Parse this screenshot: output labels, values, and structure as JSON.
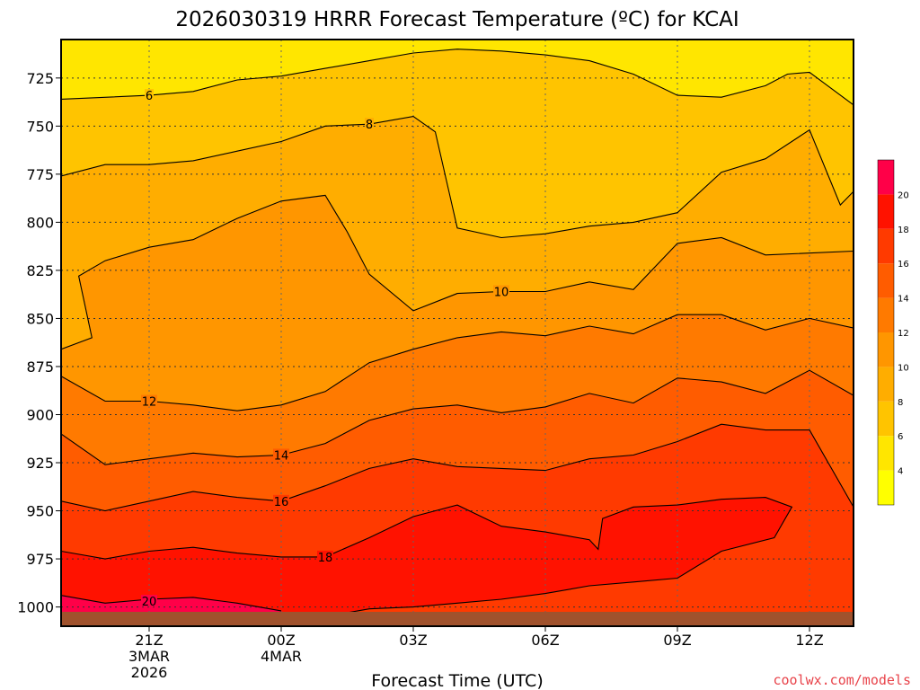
{
  "chart_data": {
    "type": "heatmap",
    "title": "2026030319 HRRR Forecast Temperature (ºC) for KCAI",
    "xlabel": "Forecast Time (UTC)",
    "ylabel": "",
    "credit": "coolwx.com/models",
    "x_ticks": [
      {
        "hour": 21,
        "lines": [
          "21Z",
          "3MAR",
          "2026"
        ]
      },
      {
        "hour": 24,
        "lines": [
          "00Z",
          "4MAR"
        ]
      },
      {
        "hour": 27,
        "lines": [
          "03Z"
        ]
      },
      {
        "hour": 30,
        "lines": [
          "06Z"
        ]
      },
      {
        "hour": 33,
        "lines": [
          "09Z"
        ]
      },
      {
        "hour": 36,
        "lines": [
          "12Z"
        ]
      }
    ],
    "xlim": [
      19,
      37
    ],
    "y_ticks": [
      725,
      750,
      775,
      800,
      825,
      850,
      875,
      900,
      925,
      950,
      975,
      1000
    ],
    "ylim_hpa": [
      705,
      1010
    ],
    "colorbar_ticks": [
      4,
      6,
      8,
      10,
      12,
      14,
      16,
      18,
      20
    ],
    "levels": [
      {
        "min": 2,
        "max": 4,
        "color": "#ffff00"
      },
      {
        "min": 4,
        "max": 6,
        "color": "#ffe600"
      },
      {
        "min": 6,
        "max": 8,
        "color": "#ffc400"
      },
      {
        "min": 8,
        "max": 10,
        "color": "#ffad00"
      },
      {
        "min": 10,
        "max": 12,
        "color": "#ff9600"
      },
      {
        "min": 12,
        "max": 14,
        "color": "#ff7a00"
      },
      {
        "min": 14,
        "max": 16,
        "color": "#ff5c00"
      },
      {
        "min": 16,
        "max": 18,
        "color": "#ff3a00"
      },
      {
        "min": 18,
        "max": 20,
        "color": "#ff1200"
      },
      {
        "min": 20,
        "max": 22,
        "color": "#ff0048"
      }
    ],
    "contours": [
      {
        "value": 6,
        "label_at": [
          21,
          734
        ],
        "points": [
          [
            19,
            736
          ],
          [
            21,
            734
          ],
          [
            22,
            732
          ],
          [
            23,
            726
          ],
          [
            24,
            724
          ],
          [
            25,
            720
          ],
          [
            26,
            716
          ],
          [
            27,
            712
          ],
          [
            28,
            710
          ],
          [
            29,
            711
          ],
          [
            30,
            713
          ],
          [
            31,
            716
          ],
          [
            32,
            723
          ],
          [
            33,
            734
          ],
          [
            34,
            735
          ],
          [
            35,
            729
          ],
          [
            35.5,
            723
          ],
          [
            36,
            722
          ],
          [
            37,
            739
          ]
        ]
      },
      {
        "value": 8,
        "label_at": [
          26,
          749
        ],
        "points": [
          [
            19,
            776
          ],
          [
            20,
            770
          ],
          [
            21,
            770
          ],
          [
            22,
            768
          ],
          [
            23,
            763
          ],
          [
            24,
            758
          ],
          [
            25,
            750
          ],
          [
            26,
            749
          ],
          [
            27,
            745
          ],
          [
            27.5,
            753
          ],
          [
            28,
            803
          ],
          [
            29,
            808
          ],
          [
            30,
            806
          ],
          [
            31,
            802
          ],
          [
            32,
            800
          ],
          [
            33,
            795
          ],
          [
            34,
            774
          ],
          [
            35,
            767
          ],
          [
            36,
            752
          ],
          [
            36.7,
            791
          ],
          [
            37,
            784
          ]
        ]
      },
      {
        "value": 10,
        "label_at": [
          29,
          836
        ],
        "points": [
          [
            19,
            866
          ],
          [
            19.7,
            860
          ],
          [
            19.4,
            828
          ],
          [
            20,
            820
          ],
          [
            21,
            813
          ],
          [
            22,
            809
          ],
          [
            23,
            798
          ],
          [
            24,
            789
          ],
          [
            25,
            786
          ],
          [
            25.5,
            805
          ],
          [
            26,
            827
          ],
          [
            27,
            846
          ],
          [
            28,
            837
          ],
          [
            29,
            836
          ],
          [
            30,
            836
          ],
          [
            31,
            831
          ],
          [
            32,
            835
          ],
          [
            33,
            811
          ],
          [
            34,
            808
          ],
          [
            35,
            817
          ],
          [
            37,
            815
          ]
        ]
      },
      {
        "value": 12,
        "label_at": [
          21,
          893
        ],
        "points": [
          [
            19,
            880
          ],
          [
            20,
            893
          ],
          [
            21,
            893
          ],
          [
            22,
            895
          ],
          [
            23,
            898
          ],
          [
            24,
            895
          ],
          [
            25,
            888
          ],
          [
            26,
            873
          ],
          [
            27,
            866
          ],
          [
            28,
            860
          ],
          [
            29,
            857
          ],
          [
            30,
            859
          ],
          [
            31,
            854
          ],
          [
            32,
            858
          ],
          [
            33,
            848
          ],
          [
            34,
            848
          ],
          [
            35,
            856
          ],
          [
            36,
            850
          ],
          [
            37,
            855
          ]
        ]
      },
      {
        "value": 14,
        "label_at": [
          24,
          921
        ],
        "points": [
          [
            19,
            910
          ],
          [
            20,
            926
          ],
          [
            21,
            923
          ],
          [
            22,
            920
          ],
          [
            23,
            922
          ],
          [
            24,
            921
          ],
          [
            25,
            915
          ],
          [
            26,
            903
          ],
          [
            27,
            897
          ],
          [
            28,
            895
          ],
          [
            29,
            899
          ],
          [
            30,
            896
          ],
          [
            31,
            889
          ],
          [
            32,
            894
          ],
          [
            33,
            881
          ],
          [
            34,
            883
          ],
          [
            35,
            889
          ],
          [
            36,
            877
          ],
          [
            37,
            890
          ]
        ]
      },
      {
        "value": 16,
        "label_at": [
          24,
          945
        ],
        "points": [
          [
            19,
            945
          ],
          [
            20,
            950
          ],
          [
            21,
            945
          ],
          [
            22,
            940
          ],
          [
            23,
            943
          ],
          [
            24,
            945
          ],
          [
            25,
            937
          ],
          [
            26,
            928
          ],
          [
            27,
            923
          ],
          [
            28,
            927
          ],
          [
            29,
            928
          ],
          [
            30,
            929
          ],
          [
            31,
            923
          ],
          [
            32,
            921
          ],
          [
            33,
            914
          ],
          [
            34,
            905
          ],
          [
            35,
            908
          ],
          [
            36,
            908
          ],
          [
            36.8,
            940
          ],
          [
            37,
            948
          ]
        ]
      },
      {
        "value": 18,
        "label_at": [
          25,
          974
        ],
        "points": [
          [
            19,
            971
          ],
          [
            20,
            975
          ],
          [
            21,
            971
          ],
          [
            22,
            969
          ],
          [
            23,
            972
          ],
          [
            24,
            974
          ],
          [
            25,
            974
          ],
          [
            26,
            964
          ],
          [
            27,
            953
          ],
          [
            28,
            947
          ],
          [
            29,
            958
          ],
          [
            30,
            961
          ],
          [
            31,
            965
          ],
          [
            31.2,
            970
          ],
          [
            31.3,
            954
          ],
          [
            32,
            948
          ],
          [
            33,
            947
          ],
          [
            34,
            944
          ],
          [
            35,
            943
          ],
          [
            35.6,
            948
          ],
          [
            35.2,
            964
          ],
          [
            34,
            971
          ],
          [
            33,
            985
          ],
          [
            32,
            987
          ],
          [
            31,
            989
          ],
          [
            30,
            993
          ],
          [
            29,
            996
          ],
          [
            28,
            998
          ],
          [
            27,
            1000
          ],
          [
            26,
            1001
          ],
          [
            25,
            1005
          ]
        ]
      },
      {
        "value": 20,
        "label_at": [
          21,
          997
        ],
        "points": [
          [
            19,
            994
          ],
          [
            20,
            998
          ],
          [
            21,
            996
          ],
          [
            22,
            995
          ],
          [
            23,
            998
          ],
          [
            24,
            1002
          ]
        ]
      }
    ]
  }
}
